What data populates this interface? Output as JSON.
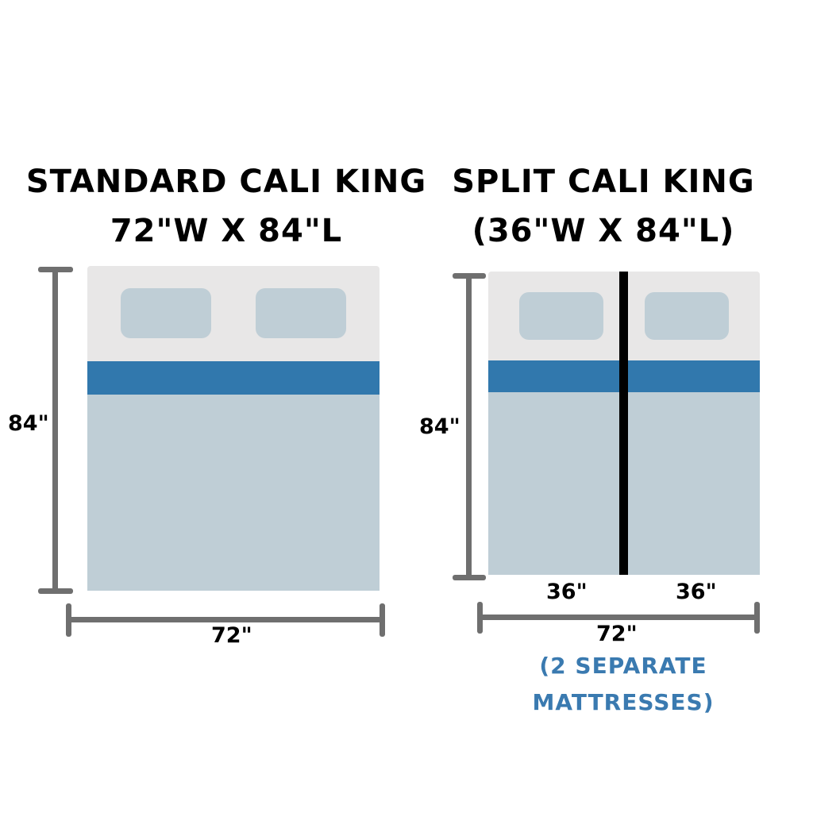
{
  "colors": {
    "headboard": "#e8e7e7",
    "pillow": "#bfced6",
    "stripe": "#3178ad",
    "sheet": "#bfced6",
    "divider": "#000000",
    "dimension_line": "#6f6f6f",
    "note_text": "#3a7ab0"
  },
  "standard": {
    "title_line1": "STANDARD CALI KING",
    "title_line2": "72\"W X 84\"L",
    "length_label": "84\"",
    "width_label": "72\""
  },
  "split": {
    "title_line1": "SPLIT CALI KING",
    "title_line2": "(36\"W X 84\"L)",
    "length_label": "84\"",
    "half_left_label": "36\"",
    "half_right_label": "36\"",
    "width_label": "72\"",
    "note_line1": "(2 SEPARATE",
    "note_line2": "MATTRESSES)"
  }
}
